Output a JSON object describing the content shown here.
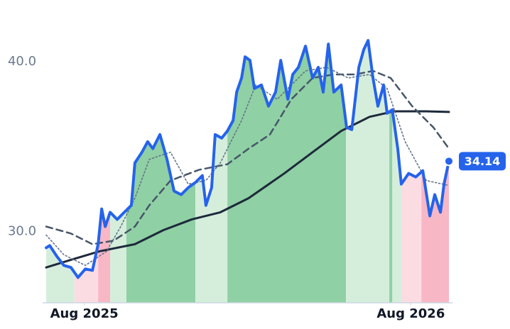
{
  "chart_data": {
    "type": "line",
    "xlim": [
      -1.4,
      13.4
    ],
    "ylim": [
      25.8,
      42.8
    ],
    "xticks": [
      {
        "value": 0,
        "label": "Aug 2025"
      },
      {
        "value": 12,
        "label": "Aug 2026"
      }
    ],
    "yticks": [
      {
        "value": 30,
        "label": "30.0"
      },
      {
        "value": 40,
        "label": "40.0"
      }
    ],
    "zones": {
      "edges": [
        -1.4,
        -0.36,
        0.51,
        0.95,
        1.55,
        4.08,
        5.26,
        9.62,
        11.21,
        11.32,
        11.65,
        12.39,
        13.4
      ],
      "colors": [
        "#d5eedc",
        "#fcdce3",
        "#f7b7c5",
        "#d5eedc",
        "#8fd0a4",
        "#d5eedc",
        "#8fd0a4",
        "#d5eedc",
        "#8fd0a4",
        "#d5eedc",
        "#fcdce3",
        "#f7b7c5"
      ]
    },
    "series": [
      {
        "color": "#2563eb",
        "style": "solid",
        "width": 4,
        "x": [
          -1.4,
          -1.27,
          -1.01,
          -0.75,
          -0.49,
          -0.23,
          0.04,
          0.3,
          0.51,
          0.64,
          0.77,
          0.95,
          1.21,
          1.47,
          1.73,
          1.86,
          2.12,
          2.33,
          2.52,
          2.78,
          3.04,
          3.3,
          3.56,
          3.82,
          4.08,
          4.34,
          4.47,
          4.68,
          4.81,
          5.05,
          5.26,
          5.47,
          5.6,
          5.78,
          5.91,
          6.09,
          6.25,
          6.51,
          6.77,
          7.03,
          7.22,
          7.48,
          7.66,
          7.87,
          8.13,
          8.39,
          8.6,
          8.78,
          8.97,
          9.17,
          9.44,
          9.64,
          9.83,
          10.09,
          10.27,
          10.43,
          10.61,
          10.79,
          11.0,
          11.13,
          11.32,
          11.52,
          11.65,
          11.92,
          12.18,
          12.44,
          12.7,
          12.88,
          13.09,
          13.22,
          13.4
        ],
        "values": [
          29.04,
          29.17,
          28.54,
          28.0,
          27.88,
          27.29,
          27.79,
          27.71,
          29.25,
          31.33,
          30.29,
          31.13,
          30.71,
          31.13,
          31.54,
          34.04,
          34.67,
          35.29,
          34.88,
          35.71,
          34.25,
          32.38,
          32.17,
          32.58,
          32.88,
          33.29,
          31.54,
          32.58,
          35.71,
          35.5,
          35.92,
          36.54,
          38.21,
          39.04,
          40.29,
          40.08,
          38.42,
          38.63,
          37.38,
          38.21,
          40.08,
          37.79,
          39.25,
          39.67,
          40.92,
          39.04,
          39.67,
          38.21,
          41.04,
          38.21,
          38.63,
          36.13,
          36.0,
          39.67,
          40.71,
          41.25,
          39.04,
          37.38,
          38.63,
          36.96,
          37.17,
          34.88,
          32.79,
          33.42,
          33.21,
          33.58,
          30.92,
          32.17,
          31.13,
          32.79,
          34.14
        ]
      },
      {
        "color": "#1e293b",
        "style": "solid",
        "width": 3,
        "x": [
          -1.4,
          -0.49,
          0.56,
          1.86,
          2.91,
          3.95,
          5.0,
          6.04,
          7.35,
          8.39,
          9.44,
          10.48,
          11.39,
          12.57,
          13.4
        ],
        "values": [
          27.88,
          28.33,
          28.83,
          29.25,
          30.08,
          30.71,
          31.13,
          31.96,
          33.42,
          34.67,
          35.92,
          36.75,
          37.08,
          37.08,
          37.04
        ]
      },
      {
        "color": "#475569",
        "style": "dashed",
        "width": 2.5,
        "x": [
          -1.4,
          -0.49,
          0.3,
          1.08,
          1.86,
          2.39,
          3.17,
          4.21,
          5.26,
          6.04,
          6.82,
          7.61,
          8.39,
          9.17,
          9.96,
          10.61,
          11.26,
          12.05,
          12.83,
          13.4
        ],
        "values": [
          30.29,
          29.88,
          29.25,
          29.46,
          30.29,
          31.54,
          33.0,
          33.63,
          33.96,
          34.88,
          35.71,
          37.79,
          39.04,
          39.25,
          39.25,
          39.46,
          39.04,
          37.38,
          36.13,
          34.88
        ]
      },
      {
        "color": "#64748b",
        "style": "dotted",
        "width": 1.6,
        "x": [
          -1.4,
          -0.75,
          0.04,
          0.82,
          1.34,
          1.86,
          2.39,
          3.17,
          3.82,
          4.47,
          5.0,
          5.78,
          6.3,
          7.09,
          8.13,
          8.91,
          9.7,
          10.48,
          11.13,
          11.79,
          12.57,
          13.4
        ],
        "values": [
          29.79,
          28.63,
          28.0,
          28.83,
          30.29,
          31.96,
          34.25,
          34.67,
          32.79,
          33.0,
          34.04,
          36.54,
          38.63,
          37.79,
          39.46,
          39.67,
          39.04,
          39.25,
          38.42,
          35.29,
          33.0,
          32.71
        ]
      }
    ]
  }
}
